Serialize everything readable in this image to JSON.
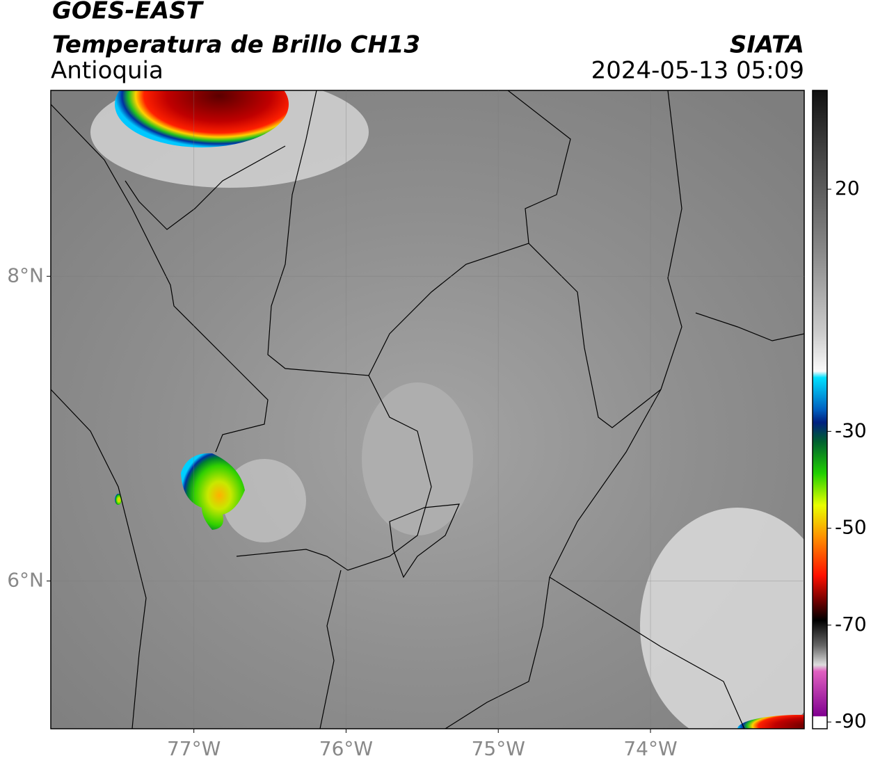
{
  "header": {
    "satellite": "GOES-EAST",
    "product": "Temperatura de Brillo CH13",
    "region": "Antioquia",
    "source": "SIATA",
    "datetime": "2024-05-13 05:09"
  },
  "map": {
    "xlim": [
      -77.94,
      -72.99
    ],
    "ylim": [
      5.03,
      9.22
    ],
    "xticks": [
      {
        "value": -77,
        "label": "77°W"
      },
      {
        "value": -76,
        "label": "76°W"
      },
      {
        "value": -75,
        "label": "75°W"
      },
      {
        "value": -74,
        "label": "74°W"
      }
    ],
    "yticks": [
      {
        "value": 8,
        "label": "8°N"
      },
      {
        "value": 6,
        "label": "6°N"
      }
    ],
    "grid": true
  },
  "colorbar": {
    "lim": [
      -91.4,
      40.4
    ],
    "ticks": [
      20,
      -30,
      -50,
      -70,
      -90
    ]
  }
}
